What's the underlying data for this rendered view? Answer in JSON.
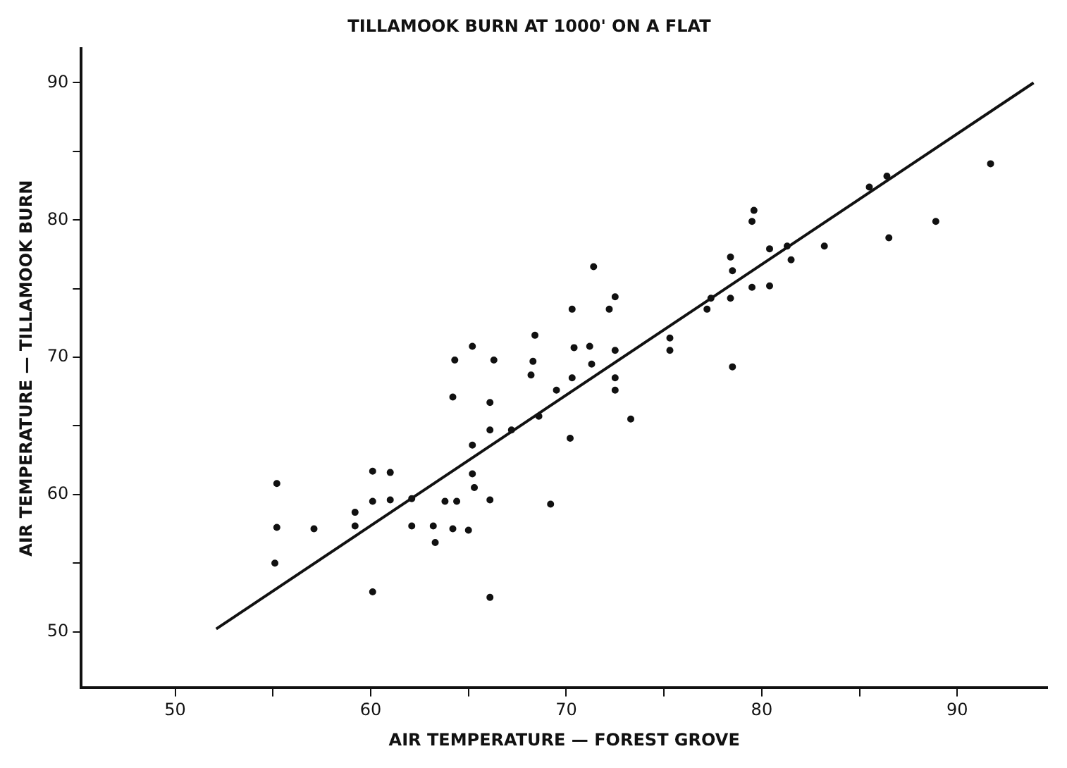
{
  "chart_data": {
    "type": "scatter",
    "title": "TILLAMOOK BURN AT 1000' ON A FLAT",
    "xlabel": "AIR TEMPERATURE — FOREST GROVE",
    "ylabel": "AIR TEMPERATURE — TILLAMOOK BURN",
    "xlim": [
      45.2,
      94.6
    ],
    "ylim": [
      45.9,
      92.5
    ],
    "xticks": [
      50,
      {
        "value": 55,
        "label": null
      },
      60,
      {
        "value": 65,
        "label": null
      },
      70,
      {
        "value": 75,
        "label": null
      },
      80,
      {
        "value": 85,
        "label": null
      },
      90
    ],
    "yticks": [
      50,
      {
        "value": 55,
        "label": null
      },
      60,
      {
        "value": 65,
        "label": null
      },
      70,
      {
        "value": 75,
        "label": null
      },
      80,
      {
        "value": 85,
        "label": null
      },
      90
    ],
    "grid": false,
    "legend": false,
    "series": [
      {
        "marker": "circle",
        "color": "#111111",
        "x": [
          55.2,
          55.2,
          55.1,
          57.1,
          60.1,
          61.0,
          60.1,
          61.0,
          59.2,
          59.2,
          60.1,
          62.1,
          63.8,
          64.4,
          62.1,
          63.2,
          64.2,
          63.3,
          65.0,
          71.4,
          72.5,
          70.3,
          72.2,
          68.4,
          65.2,
          64.3,
          66.3,
          68.3,
          70.4,
          71.2,
          72.5,
          71.3,
          68.2,
          70.3,
          72.5,
          69.5,
          72.5,
          64.2,
          66.1,
          73.3,
          68.6,
          66.1,
          67.2,
          70.2,
          65.2,
          65.2,
          65.3,
          66.1,
          69.2,
          66.1,
          86.4,
          85.5,
          88.9,
          86.5,
          79.6,
          79.5,
          80.4,
          81.3,
          78.4,
          78.5,
          81.5,
          83.2,
          79.5,
          80.4,
          78.4,
          77.2,
          77.4,
          75.3,
          75.3,
          91.7,
          78.5
        ],
        "values": [
          60.8,
          57.6,
          55.0,
          57.5,
          61.7,
          61.6,
          59.5,
          59.6,
          58.7,
          57.7,
          52.9,
          59.7,
          59.5,
          59.5,
          57.7,
          57.7,
          57.5,
          56.5,
          57.4,
          76.6,
          74.4,
          73.5,
          73.5,
          71.6,
          70.8,
          69.8,
          69.8,
          69.7,
          70.7,
          70.8,
          70.5,
          69.5,
          68.7,
          68.5,
          68.5,
          67.6,
          67.6,
          67.1,
          66.7,
          65.5,
          65.7,
          64.7,
          64.7,
          64.1,
          63.6,
          61.5,
          60.5,
          59.6,
          59.3,
          52.5,
          83.2,
          82.4,
          79.9,
          78.7,
          80.7,
          79.9,
          77.9,
          78.1,
          77.3,
          76.3,
          77.1,
          78.1,
          75.1,
          75.2,
          74.3,
          73.5,
          74.3,
          71.4,
          70.5,
          84.1,
          69.3
        ]
      },
      {
        "type": "line",
        "color": "#111111",
        "x": [
          52.1,
          93.9
        ],
        "values": [
          50.2,
          90.0
        ]
      }
    ]
  }
}
